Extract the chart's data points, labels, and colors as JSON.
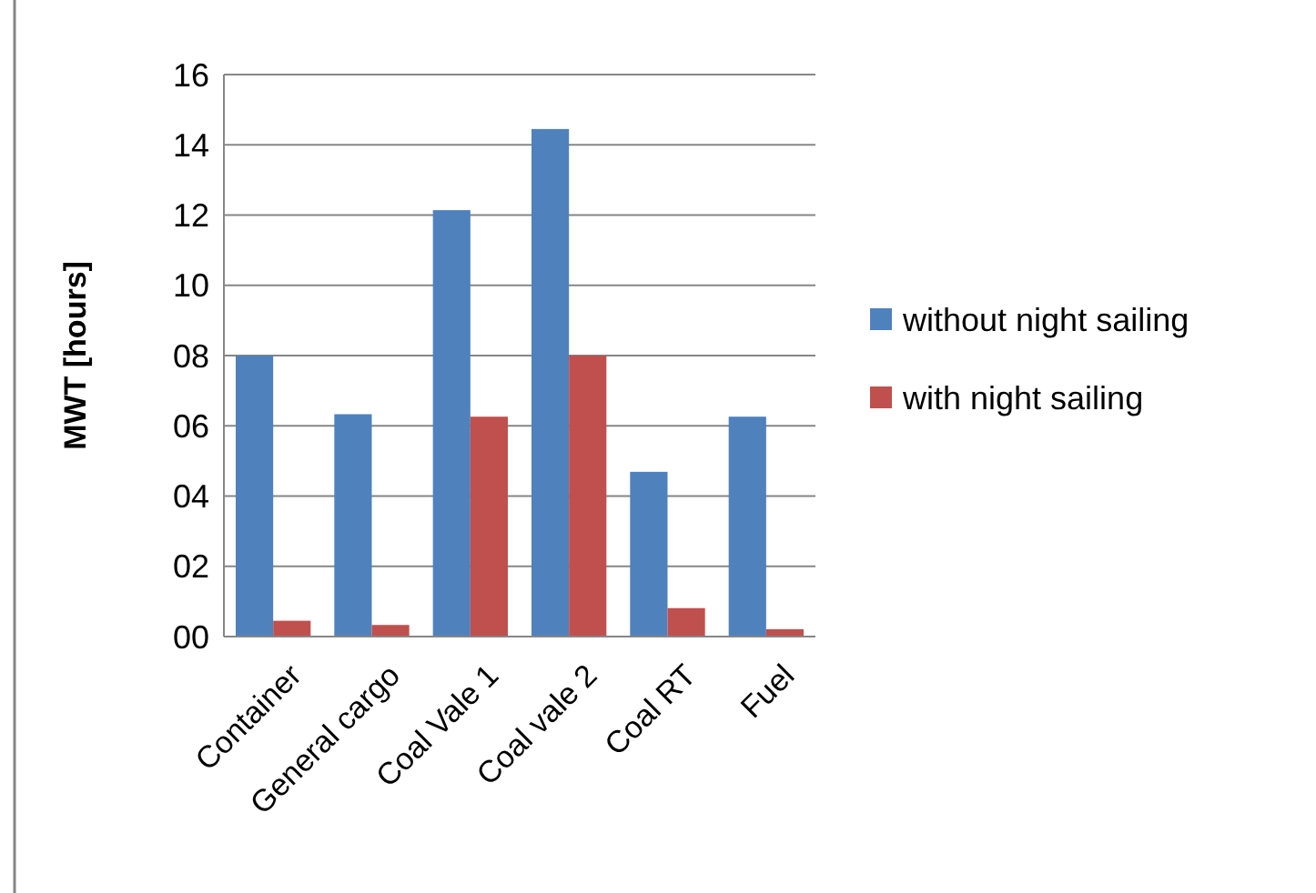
{
  "chart_data": {
    "type": "bar",
    "ylabel": "MWT [hours]",
    "categories": [
      "Container",
      "General cargo",
      "Coal Vale 1",
      "Coal vale 2",
      "Coal RT",
      "Fuel"
    ],
    "series": [
      {
        "name": "without night sailing",
        "color": "#4f81bd",
        "values": [
          8.0,
          6.33,
          12.14,
          14.45,
          4.69,
          6.26
        ]
      },
      {
        "name": "with night sailing",
        "color": "#c0504d",
        "values": [
          0.45,
          0.33,
          6.26,
          8.0,
          0.81,
          0.21
        ]
      }
    ],
    "ylim": [
      0,
      16
    ],
    "yticks": [
      {
        "value": 0,
        "label": "00"
      },
      {
        "value": 2,
        "label": "02"
      },
      {
        "value": 4,
        "label": "04"
      },
      {
        "value": 6,
        "label": "06"
      },
      {
        "value": 8,
        "label": "08"
      },
      10,
      12,
      14,
      16
    ],
    "grid": "y",
    "legend": "right"
  }
}
